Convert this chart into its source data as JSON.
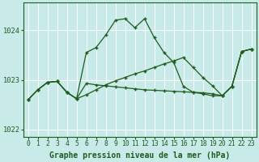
{
  "title": "Graphe pression niveau de la mer (hPa)",
  "bg_color": "#c8eae8",
  "grid_color": "#ffffff",
  "line_color": "#1f5c1f",
  "x_hours": [
    0,
    1,
    2,
    3,
    4,
    5,
    6,
    7,
    8,
    9,
    10,
    11,
    12,
    13,
    14,
    15,
    16,
    17,
    18,
    19,
    20,
    21,
    22,
    23
  ],
  "s1": [
    1022.6,
    1022.8,
    1022.95,
    1022.98,
    1022.75,
    1022.65,
    1023.55,
    1023.65,
    1023.9,
    1024.2,
    1024.22,
    1024.05,
    1024.22,
    1023.85,
    1023.58,
    1023.38,
    1022.88,
    1022.75,
    1022.72,
    1022.7,
    1022.7,
    1022.88,
    1023.58,
    1023.62
  ],
  "s2": [
    1022.6,
    1022.8,
    1022.95,
    1022.98,
    1022.75,
    1022.65,
    1022.9,
    1022.88,
    1022.87,
    1022.85,
    1022.84,
    1022.83,
    1022.82,
    1022.81,
    1022.8,
    1022.79,
    1022.78,
    1022.77,
    1022.76,
    1022.75,
    1022.7,
    1022.88,
    1023.58,
    1023.62
  ],
  "s3": [
    1022.6,
    1022.8,
    1022.95,
    1022.98,
    1022.75,
    1022.65,
    1022.92,
    1023.0,
    1023.05,
    1023.1,
    1023.15,
    1023.2,
    1023.25,
    1023.3,
    1023.35,
    1023.4,
    1023.45,
    1023.2,
    1022.9,
    1022.8,
    1022.7,
    1022.88,
    1023.58,
    1023.62
  ],
  "ylim": [
    1021.85,
    1024.55
  ],
  "yticks": [
    1022.0,
    1023.0,
    1024.0
  ],
  "xlim": [
    -0.5,
    23.5
  ],
  "title_fontsize": 7.0,
  "tick_fontsize": 5.8
}
